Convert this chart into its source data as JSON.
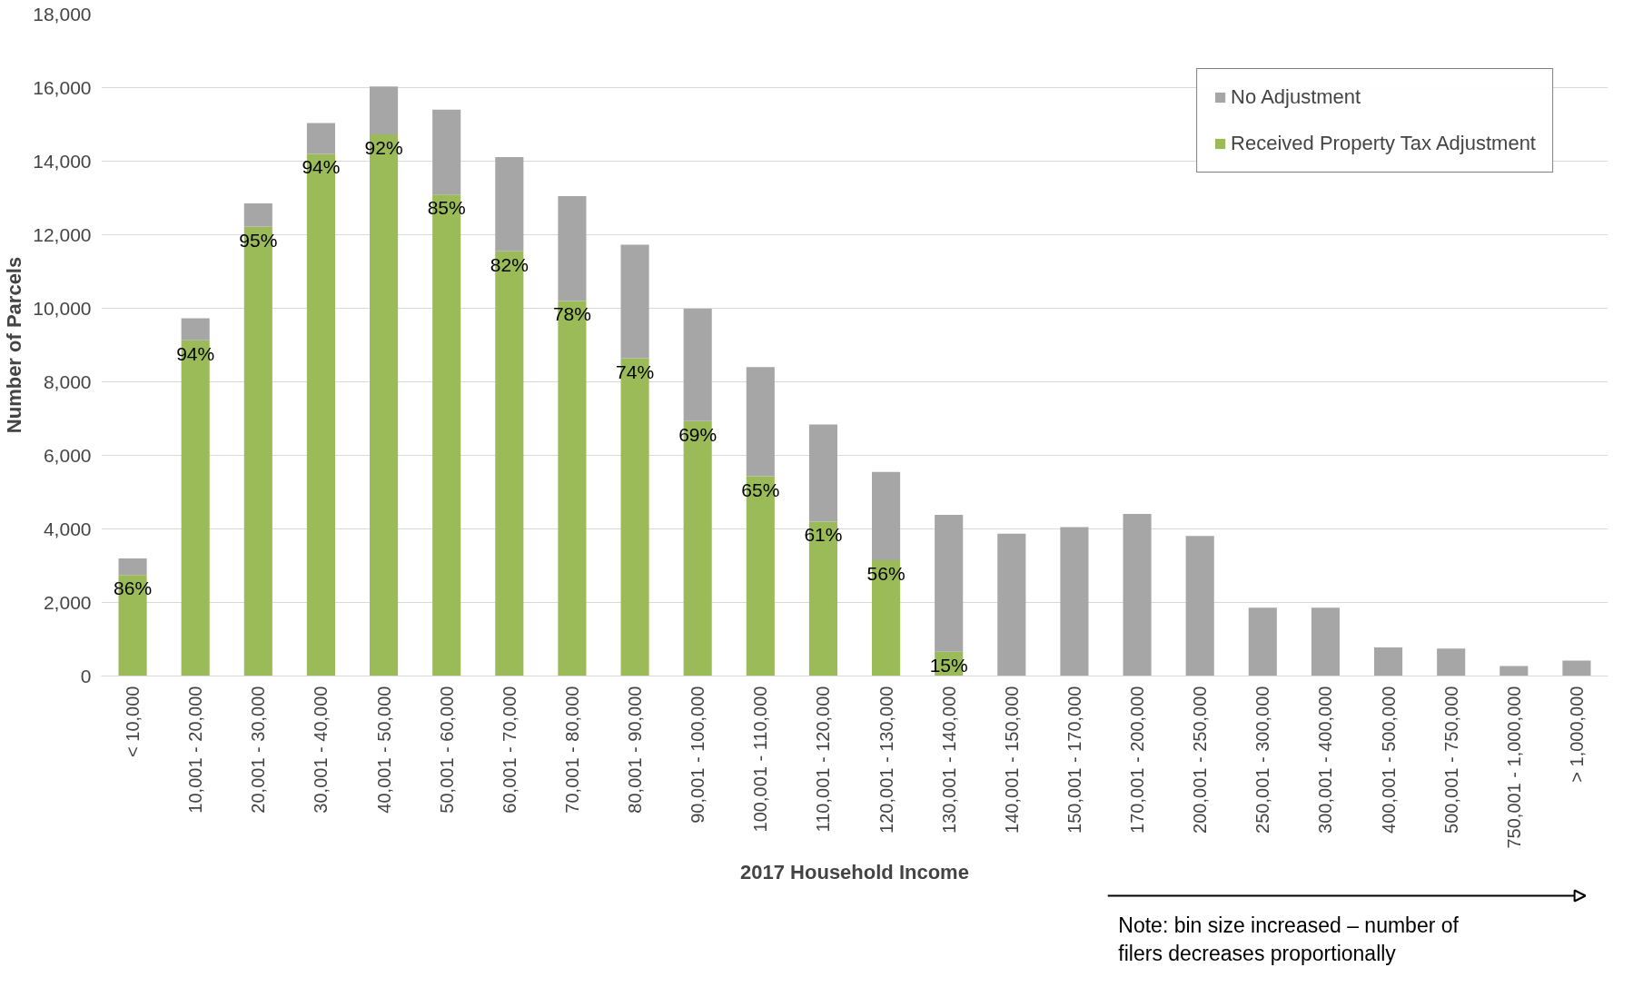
{
  "chart_data": {
    "type": "bar",
    "stacked": true,
    "xlabel": "2017 Household Income",
    "ylabel": "Number of Parcels",
    "categories": [
      "< 10,000",
      "10,001 - 20,000",
      "20,001 - 30,000",
      "30,001 - 40,000",
      "40,001 - 50,000",
      "50,001 - 60,000",
      "60,001 - 70,000",
      "70,001 - 80,000",
      "80,001 - 90,000",
      "90,001 - 100,000",
      "100,001 - 110,000",
      "110,001 - 120,000",
      "120,001 - 130,000",
      "130,001 - 140,000",
      "140,001 - 150,000",
      "150,001 - 170,000",
      "170,001 - 200,000",
      "200,001 - 250,000",
      "250,001 - 300,000",
      "300,001 - 400,000",
      "400,001 - 500,000",
      "500,001 - 750,000",
      "750,001 - 1,000,000",
      "> 1,000,000"
    ],
    "series": [
      {
        "name": "Received Property Tax Adjustment",
        "color": "#9bbb59",
        "values": [
          2750,
          9130,
          12220,
          14200,
          14730,
          13090,
          11550,
          10200,
          8640,
          6930,
          5430,
          4200,
          3150,
          660,
          0,
          0,
          0,
          0,
          0,
          0,
          0,
          0,
          0,
          0
        ]
      },
      {
        "name": "No Adjustment",
        "color": "#a6a6a6",
        "values": [
          450,
          600,
          630,
          840,
          1300,
          2310,
          2560,
          2850,
          3090,
          3060,
          2970,
          2640,
          2400,
          3720,
          3870,
          4050,
          4410,
          3810,
          1860,
          1860,
          780,
          750,
          270,
          420
        ]
      }
    ],
    "ylim": [
      0,
      18000
    ],
    "yticks": [
      {
        "value": 0,
        "label": "0"
      },
      {
        "value": 2000,
        "label": "2,000"
      },
      {
        "value": 4000,
        "label": "4,000"
      },
      {
        "value": 6000,
        "label": "6,000"
      },
      {
        "value": 8000,
        "label": "8,000"
      },
      {
        "value": 10000,
        "label": "10,000"
      },
      {
        "value": 12000,
        "label": "12,000"
      },
      {
        "value": 14000,
        "label": "14,000"
      },
      {
        "value": 16000,
        "label": "16,000"
      },
      {
        "value": 18000,
        "label": "18,000"
      }
    ],
    "grid": "y",
    "legend": "top right",
    "annotations": [
      {
        "text": "86%",
        "x": "< 10,000",
        "y": 2750
      },
      {
        "text": "94%",
        "x": "10,001 - 20,000",
        "y": 9130
      },
      {
        "text": "95%",
        "x": "20,001 - 30,000",
        "y": 12220
      },
      {
        "text": "94%",
        "x": "30,001 - 40,000",
        "y": 14200
      },
      {
        "text": "92%",
        "x": "40,001 - 50,000",
        "y": 14730
      },
      {
        "text": "85%",
        "x": "50,001 - 60,000",
        "y": 13090
      },
      {
        "text": "82%",
        "x": "60,001 - 70,000",
        "y": 11550
      },
      {
        "text": "78%",
        "x": "70,001 - 80,000",
        "y": 10200
      },
      {
        "text": "74%",
        "x": "80,001 - 90,000",
        "y": 8640
      },
      {
        "text": "69%",
        "x": "90,001 - 100,000",
        "y": 6930
      },
      {
        "text": "65%",
        "x": "100,001 - 110,000",
        "y": 5430
      },
      {
        "text": "61%",
        "x": "110,001 - 120,000",
        "y": 4200
      },
      {
        "text": "56%",
        "x": "120,001 - 130,000",
        "y": 3150
      },
      {
        "text": "15%",
        "x": "130,001 - 140,000",
        "y": 660
      },
      "Note: bin size increased – number of\nfilers decreases proportionally"
    ]
  }
}
